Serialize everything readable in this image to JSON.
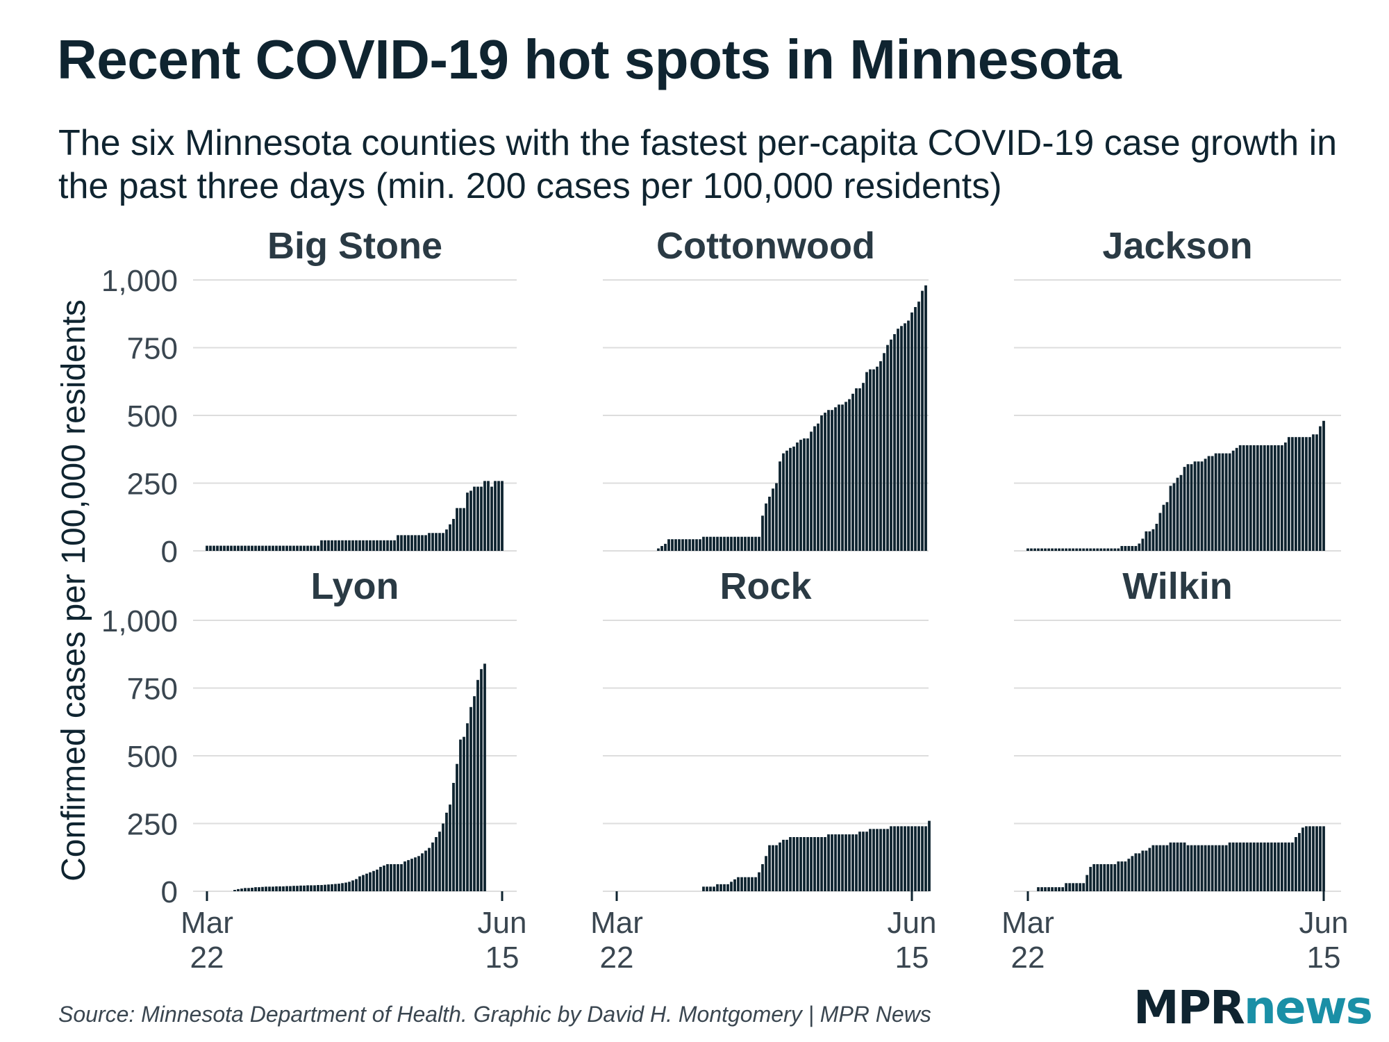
{
  "title": "Recent COVID-19 hot spots in Minnesota",
  "subtitle": "The six Minnesota counties with the fastest per-capita COVID-19 case growth in the past three days (min. 200 cases per 100,000 residents)",
  "source": "Source: Minnesota Department of Health. Graphic by David H. Montgomery | MPR News",
  "logo": {
    "part1": "MPR",
    "part2": "news"
  },
  "colors": {
    "bar": "#0f2430",
    "grid": "#dddddd",
    "text": "#0f2430",
    "axis_text": "#3a4650",
    "brand": "#1a8fa6"
  },
  "chart_data": {
    "type": "bar",
    "title": "Recent COVID-19 hot spots in Minnesota",
    "ylabel": "Confirmed cases per 100,000 residents",
    "xlabel": "",
    "ylim": [
      0,
      1000
    ],
    "yticks": [
      "0",
      "250",
      "500",
      "750",
      "1,000"
    ],
    "ytick_values": [
      0,
      250,
      500,
      750,
      1000
    ],
    "xticks": [
      {
        "day": 0,
        "line1": "Mar",
        "line2": "22"
      },
      {
        "day": 85,
        "line1": "Jun",
        "line2": "15"
      }
    ],
    "x_range_days": [
      0,
      85
    ],
    "bar_day_step": 1,
    "grid": true,
    "facets": [
      {
        "name": "Big Stone",
        "start_day": 0,
        "values": [
          19,
          19,
          19,
          19,
          19,
          19,
          19,
          19,
          19,
          19,
          19,
          19,
          19,
          19,
          19,
          19,
          19,
          19,
          19,
          19,
          19,
          19,
          19,
          19,
          19,
          19,
          19,
          19,
          19,
          19,
          19,
          19,
          19,
          39,
          39,
          39,
          39,
          39,
          39,
          39,
          39,
          39,
          39,
          39,
          39,
          39,
          39,
          39,
          39,
          39,
          39,
          39,
          39,
          39,
          39,
          58,
          58,
          58,
          58,
          58,
          58,
          58,
          58,
          58,
          66,
          66,
          66,
          66,
          66,
          79,
          98,
          118,
          158,
          158,
          158,
          215,
          222,
          237,
          237,
          237,
          258,
          258,
          237,
          258,
          258,
          258
        ]
      },
      {
        "name": "Cottonwood",
        "start_day": 12,
        "values": [
          9,
          18,
          26,
          43,
          43,
          43,
          43,
          43,
          43,
          43,
          43,
          43,
          43,
          52,
          52,
          52,
          52,
          52,
          52,
          52,
          52,
          52,
          52,
          52,
          52,
          52,
          52,
          52,
          52,
          52,
          130,
          175,
          200,
          230,
          250,
          330,
          360,
          370,
          380,
          385,
          400,
          410,
          415,
          415,
          440,
          460,
          470,
          500,
          510,
          520,
          520,
          530,
          540,
          540,
          550,
          560,
          580,
          600,
          600,
          620,
          660,
          670,
          670,
          680,
          700,
          730,
          760,
          780,
          800,
          820,
          830,
          840,
          850,
          880,
          900,
          920,
          960,
          980
        ]
      },
      {
        "name": "Jackson",
        "start_day": 0,
        "values": [
          9,
          9,
          9,
          9,
          9,
          9,
          9,
          9,
          9,
          9,
          9,
          9,
          9,
          9,
          9,
          9,
          9,
          9,
          9,
          9,
          9,
          9,
          9,
          9,
          9,
          9,
          9,
          18,
          18,
          18,
          18,
          18,
          27,
          45,
          72,
          72,
          80,
          100,
          140,
          170,
          180,
          240,
          250,
          270,
          280,
          310,
          320,
          320,
          330,
          330,
          330,
          340,
          350,
          350,
          360,
          360,
          360,
          360,
          360,
          370,
          380,
          390,
          390,
          390,
          390,
          390,
          390,
          390,
          390,
          390,
          390,
          390,
          390,
          390,
          400,
          420,
          420,
          420,
          420,
          420,
          420,
          420,
          430,
          430,
          460,
          480
        ]
      },
      {
        "name": "Lyon",
        "start_day": 0,
        "values": [
          0,
          0,
          0,
          0,
          0,
          0,
          0,
          0,
          5,
          8,
          10,
          12,
          12,
          13,
          15,
          15,
          16,
          17,
          17,
          17,
          18,
          18,
          18,
          19,
          19,
          20,
          20,
          21,
          21,
          22,
          22,
          22,
          23,
          23,
          24,
          25,
          26,
          27,
          28,
          30,
          32,
          35,
          40,
          45,
          55,
          60,
          65,
          70,
          75,
          80,
          90,
          95,
          100,
          100,
          100,
          100,
          100,
          110,
          115,
          120,
          125,
          130,
          140,
          150,
          160,
          180,
          200,
          220,
          250,
          290,
          320,
          400,
          470,
          560,
          570,
          620,
          680,
          720,
          780,
          820,
          840,
          0,
          0,
          0,
          0,
          0
        ]
      },
      {
        "name": "Rock",
        "start_day": 25,
        "values": [
          17,
          17,
          17,
          17,
          26,
          26,
          26,
          26,
          35,
          44,
          52,
          52,
          52,
          52,
          52,
          52,
          70,
          100,
          130,
          170,
          170,
          170,
          180,
          190,
          190,
          200,
          200,
          200,
          200,
          200,
          200,
          200,
          200,
          200,
          200,
          200,
          210,
          210,
          210,
          210,
          210,
          210,
          210,
          210,
          210,
          220,
          220,
          220,
          230,
          230,
          230,
          230,
          230,
          230,
          240,
          240,
          240,
          240,
          240,
          240,
          240,
          240,
          240,
          240,
          240,
          260
        ]
      },
      {
        "name": "Wilkin",
        "start_day": 3,
        "values": [
          15,
          15,
          15,
          15,
          15,
          15,
          15,
          15,
          30,
          30,
          30,
          30,
          30,
          30,
          60,
          90,
          100,
          100,
          100,
          100,
          100,
          100,
          100,
          110,
          110,
          110,
          120,
          130,
          140,
          140,
          150,
          150,
          160,
          170,
          170,
          170,
          170,
          170,
          180,
          180,
          180,
          180,
          180,
          170,
          170,
          170,
          170,
          170,
          170,
          170,
          170,
          170,
          170,
          170,
          170,
          180,
          180,
          180,
          180,
          180,
          180,
          180,
          180,
          180,
          180,
          180,
          180,
          180,
          180,
          180,
          180,
          180,
          180,
          180,
          200,
          215,
          235,
          240,
          240,
          240,
          240,
          240,
          240
        ]
      }
    ]
  }
}
